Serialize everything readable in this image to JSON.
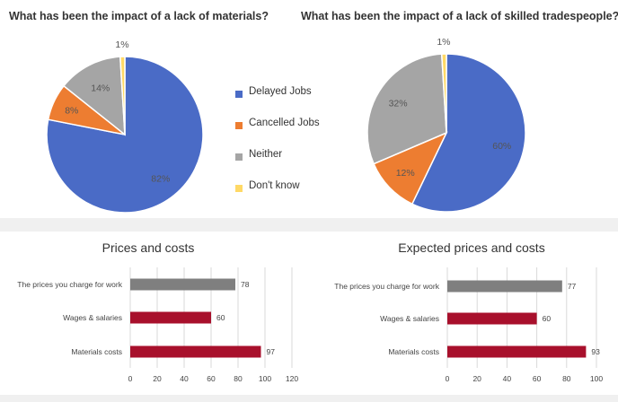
{
  "colors": {
    "delayed": "#4a6bc6",
    "cancelled": "#ed7d31",
    "neither": "#a5a5a5",
    "dont_know": "#ffd966",
    "bar_prices": "#7f7f7f",
    "bar_other": "#a8102c"
  },
  "chart_data": [
    {
      "type": "pie",
      "title": "What has been the impact of a lack of materials?",
      "slices": [
        {
          "name": "Delayed Jobs",
          "value": 82,
          "label": "82%"
        },
        {
          "name": "Cancelled Jobs",
          "value": 8,
          "label": "8%"
        },
        {
          "name": "Neither",
          "value": 14,
          "label": "14%"
        },
        {
          "name": "Don't know",
          "value": 1,
          "label": "1%"
        }
      ]
    },
    {
      "type": "pie",
      "title": "What has been the impact of a lack of skilled tradespeople?",
      "slices": [
        {
          "name": "Delayed Jobs",
          "value": 60,
          "label": "60%"
        },
        {
          "name": "Cancelled Jobs",
          "value": 12,
          "label": "12%"
        },
        {
          "name": "Neither",
          "value": 32,
          "label": "32%"
        },
        {
          "name": "Don't know",
          "value": 1,
          "label": "1%"
        }
      ]
    },
    {
      "type": "bar",
      "orientation": "horizontal",
      "title": "Prices and costs",
      "categories": [
        "The prices you charge for work",
        "Wages & salaries",
        "Materials costs"
      ],
      "values": [
        78,
        60,
        97
      ],
      "xlim": [
        0,
        120
      ],
      "ticks": [
        0,
        20,
        40,
        60,
        80,
        100,
        120
      ],
      "grid": true
    },
    {
      "type": "bar",
      "orientation": "horizontal",
      "title": "Expected prices and costs",
      "categories": [
        "The prices you charge for work",
        "Wages & salaries",
        "Materials costs"
      ],
      "values": [
        77,
        60,
        93
      ],
      "xlim": [
        0,
        100
      ],
      "ticks": [
        0,
        20,
        40,
        60,
        80,
        100
      ],
      "grid": true
    }
  ],
  "legend": {
    "items": [
      {
        "name": "Delayed Jobs"
      },
      {
        "name": "Cancelled Jobs"
      },
      {
        "name": "Neither"
      },
      {
        "name": "Don't know"
      }
    ],
    "placement": "center between pies"
  }
}
